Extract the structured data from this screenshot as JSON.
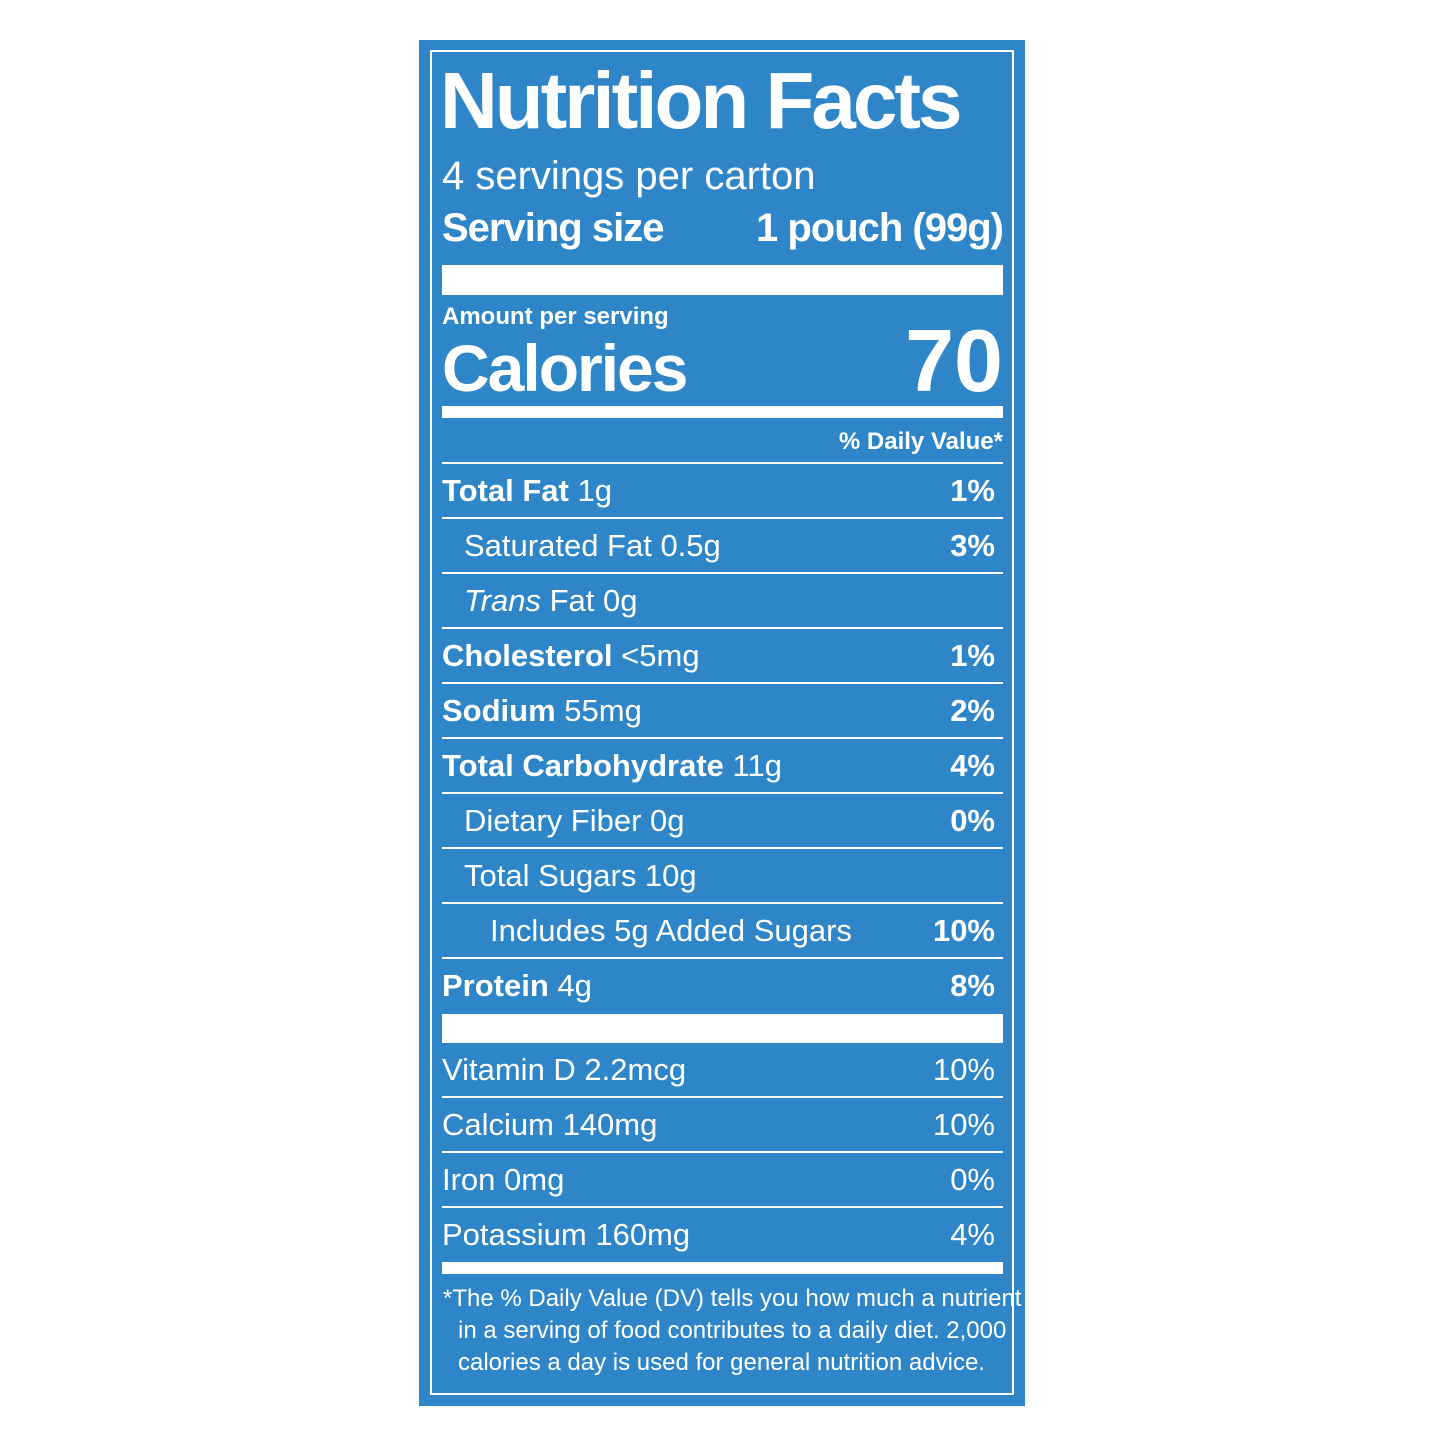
{
  "title": "Nutrition Facts",
  "servings": "4 servings per carton",
  "serving_size": {
    "label": "Serving size",
    "value": "1 pouch (99g)"
  },
  "amount_per_serving": "Amount per serving",
  "calories": {
    "label": "Calories",
    "value": "70"
  },
  "daily_value_header": "% Daily Value*",
  "nutrients": [
    {
      "name": "Total Fat",
      "amount": "1g",
      "dv": "1%"
    },
    {
      "name": "Saturated Fat 0.5g",
      "dv": "3%"
    },
    {
      "italic": "Trans",
      "name": "Fat 0g"
    },
    {
      "name": "Cholesterol",
      "amount": "<5mg",
      "dv": "1%"
    },
    {
      "name": "Sodium",
      "amount": "55mg",
      "dv": "2%"
    },
    {
      "name": "Total Carbohydrate",
      "amount": "11g",
      "dv": "4%"
    },
    {
      "name": "Dietary Fiber 0g",
      "dv": "0%"
    },
    {
      "name": "Total Sugars 10g"
    },
    {
      "name": "Includes 5g Added Sugars",
      "dv": "10%"
    },
    {
      "name": "Protein",
      "amount": "4g",
      "dv": "8%"
    }
  ],
  "vitamins": [
    {
      "name": "Vitamin D 2.2mcg",
      "dv": "10%"
    },
    {
      "name": "Calcium 140mg",
      "dv": "10%"
    },
    {
      "name": "Iron 0mg",
      "dv": "0%"
    },
    {
      "name": "Potassium 160mg",
      "dv": "4%"
    }
  ],
  "footnote": [
    "*The % Daily Value (DV) tells you how much a nutrient",
    "in a serving of food contributes to a daily diet. 2,000",
    "calories a day is used for general nutrition advice."
  ]
}
